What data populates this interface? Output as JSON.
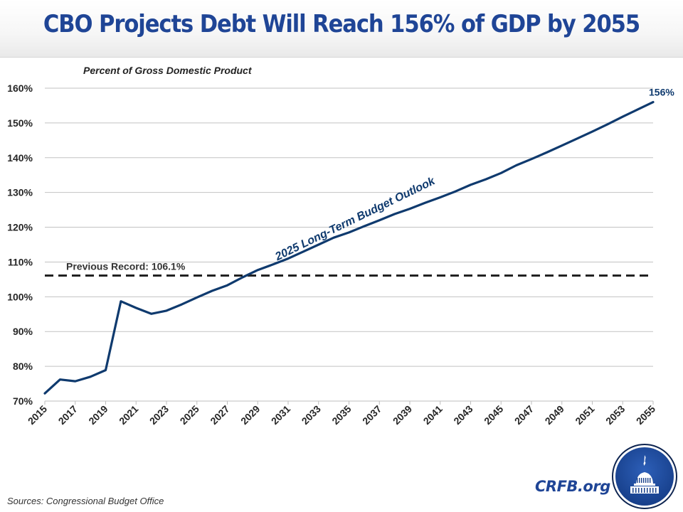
{
  "header": {
    "title": "CBO Projects Debt Will Reach 156% of GDP by 2055"
  },
  "chart_data": {
    "type": "line",
    "title": "CBO Projects Debt Will Reach 156% of GDP by 2055",
    "subtitle": "Percent of Gross Domestic Product",
    "xlabel": "",
    "ylabel": "Percent of Gross Domestic Product",
    "ylim": [
      70,
      160
    ],
    "yticks": [
      70,
      80,
      90,
      100,
      110,
      120,
      130,
      140,
      150,
      160
    ],
    "ytick_labels": [
      "70%",
      "80%",
      "90%",
      "100%",
      "110%",
      "120%",
      "130%",
      "140%",
      "150%",
      "160%"
    ],
    "xlim": [
      2015,
      2055
    ],
    "xtick_labels": [
      "2015",
      "2017",
      "2019",
      "2021",
      "2023",
      "2025",
      "2027",
      "2029",
      "2031",
      "2033",
      "2035",
      "2037",
      "2039",
      "2041",
      "2043",
      "2045",
      "2047",
      "2049",
      "2051",
      "2053",
      "2055"
    ],
    "grid": true,
    "series": [
      {
        "name": "2025 Long-Term Budget Outlook",
        "color": "#0f3a6e",
        "x": [
          2015,
          2016,
          2017,
          2018,
          2019,
          2020,
          2021,
          2022,
          2023,
          2024,
          2025,
          2026,
          2027,
          2028,
          2029,
          2030,
          2031,
          2032,
          2033,
          2034,
          2035,
          2036,
          2037,
          2038,
          2039,
          2040,
          2041,
          2042,
          2043,
          2044,
          2045,
          2046,
          2047,
          2048,
          2049,
          2050,
          2051,
          2052,
          2053,
          2054,
          2055
        ],
        "values": [
          72.2,
          76.2,
          75.7,
          77.0,
          78.9,
          98.7,
          96.8,
          95.1,
          96.0,
          97.8,
          99.8,
          101.7,
          103.3,
          105.6,
          107.7,
          109.3,
          111.0,
          113.0,
          115.0,
          117.0,
          118.5,
          120.3,
          122.0,
          123.8,
          125.3,
          127.0,
          128.6,
          130.3,
          132.2,
          133.8,
          135.6,
          137.8,
          139.6,
          141.5,
          143.5,
          145.5,
          147.5,
          149.6,
          151.8,
          153.9,
          156.0
        ]
      }
    ],
    "reference_line": {
      "label": "Previous Record: 106.1%",
      "value": 106.1,
      "style": "dashed",
      "color": "#222222"
    },
    "annotations": [
      {
        "text": "2025 Long-Term Budget Outlook",
        "attached_to": "series line",
        "color": "#0f3a6e"
      },
      {
        "text": "156%",
        "x": 2055,
        "y": 156,
        "color": "#0f3a6e"
      }
    ],
    "legend": "none"
  },
  "footer": {
    "source": "Sources: Congressional Budget Office",
    "brand": "CRFB.org",
    "logo_icon": "capitol-dome-logo"
  },
  "colors": {
    "title": "#1f4596",
    "line": "#0f3a6e",
    "brand": "#1f4596",
    "logo_bg": "#1f4596"
  }
}
